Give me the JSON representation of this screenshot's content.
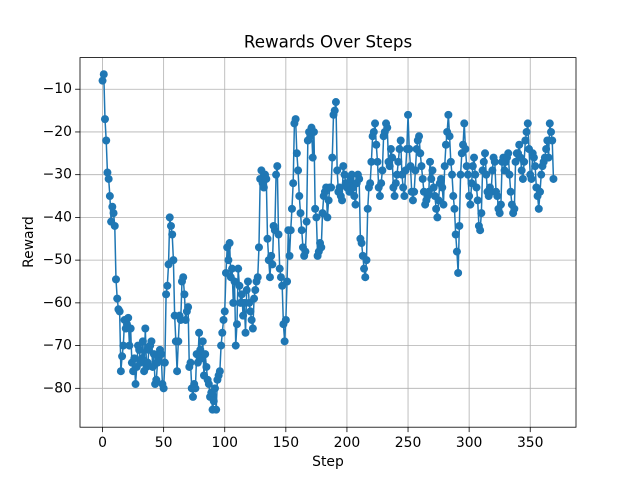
{
  "chart_data": {
    "type": "line",
    "title": "Rewards Over Steps",
    "x_label": "Step",
    "y_label": "Reward",
    "grid": true,
    "xlim": [
      -18.45,
      387.45
    ],
    "ylim": [
      -89.1,
      -2.6
    ],
    "xticks": [
      0,
      50,
      100,
      150,
      200,
      250,
      300,
      350
    ],
    "yticks": [
      {
        "value": -80,
        "label": "−80"
      },
      {
        "value": -70,
        "label": "−70"
      },
      {
        "value": -60,
        "label": "−60"
      },
      {
        "value": -50,
        "label": "−50"
      },
      {
        "value": -40,
        "label": "−40"
      },
      {
        "value": -30,
        "label": "−30"
      },
      {
        "value": -20,
        "label": "−20"
      },
      {
        "value": -10,
        "label": "−10"
      }
    ],
    "x": [
      0,
      1,
      2,
      3,
      4,
      5,
      6,
      7,
      8,
      9,
      10,
      11,
      12,
      13,
      14,
      15,
      16,
      17,
      18,
      19,
      20,
      21,
      22,
      23,
      24,
      25,
      26,
      27,
      28,
      29,
      30,
      31,
      32,
      33,
      34,
      35,
      36,
      37,
      38,
      39,
      40,
      41,
      42,
      43,
      44,
      45,
      46,
      47,
      48,
      49,
      50,
      51,
      52,
      53,
      54,
      55,
      56,
      57,
      58,
      59,
      60,
      61,
      62,
      63,
      64,
      65,
      66,
      67,
      68,
      69,
      70,
      71,
      72,
      73,
      74,
      75,
      76,
      77,
      78,
      79,
      80,
      81,
      82,
      83,
      84,
      85,
      86,
      87,
      88,
      89,
      90,
      91,
      92,
      93,
      94,
      95,
      96,
      97,
      98,
      99,
      100,
      101,
      102,
      103,
      104,
      105,
      106,
      107,
      108,
      109,
      110,
      111,
      112,
      113,
      114,
      115,
      116,
      117,
      118,
      119,
      120,
      121,
      122,
      123,
      124,
      125,
      126,
      127,
      128,
      129,
      130,
      131,
      132,
      133,
      134,
      135,
      136,
      137,
      138,
      139,
      140,
      141,
      142,
      143,
      144,
      145,
      146,
      147,
      148,
      149,
      150,
      151,
      152,
      153,
      154,
      155,
      156,
      157,
      158,
      159,
      160,
      161,
      162,
      163,
      164,
      165,
      166,
      167,
      168,
      169,
      170,
      171,
      172,
      173,
      174,
      175,
      176,
      177,
      178,
      179,
      180,
      181,
      182,
      183,
      184,
      185,
      186,
      187,
      188,
      189,
      190,
      191,
      192,
      193,
      194,
      195,
      196,
      197,
      198,
      199,
      200,
      201,
      202,
      203,
      204,
      205,
      206,
      207,
      208,
      209,
      210,
      211,
      212,
      213,
      214,
      215,
      216,
      217,
      218,
      219,
      220,
      221,
      222,
      223,
      224,
      225,
      226,
      227,
      228,
      229,
      230,
      231,
      232,
      233,
      234,
      235,
      236,
      237,
      238,
      239,
      240,
      241,
      242,
      243,
      244,
      245,
      246,
      247,
      248,
      249,
      250,
      251,
      252,
      253,
      254,
      255,
      256,
      257,
      258,
      259,
      260,
      261,
      262,
      263,
      264,
      265,
      266,
      267,
      268,
      269,
      270,
      271,
      272,
      273,
      274,
      275,
      276,
      277,
      278,
      279,
      280,
      281,
      282,
      283,
      284,
      285,
      286,
      287,
      288,
      289,
      290,
      291,
      292,
      293,
      294,
      295,
      296,
      297,
      298,
      299,
      300,
      301,
      302,
      303,
      304,
      305,
      306,
      307,
      308,
      309,
      310,
      311,
      312,
      313,
      314,
      315,
      316,
      317,
      318,
      319,
      320,
      321,
      322,
      323,
      324,
      325,
      326,
      327,
      328,
      329,
      330,
      331,
      332,
      333,
      334,
      335,
      336,
      337,
      338,
      339,
      340,
      341,
      342,
      343,
      344,
      345,
      346,
      347,
      348,
      349,
      350,
      351,
      352,
      353,
      354,
      355,
      356,
      357,
      358,
      359,
      360,
      361,
      362,
      363,
      364,
      365,
      366,
      367,
      368,
      369
    ],
    "series": [
      {
        "name": "Reward",
        "color": "#1f77b4",
        "values": [
          -8,
          -6.5,
          -17,
          -22,
          -29.5,
          -31,
          -35,
          -41,
          -37.5,
          -39,
          -42,
          -54.5,
          -59,
          -61.5,
          -62,
          -76,
          -72.5,
          -70,
          -64,
          -66,
          -65,
          -63.5,
          -70,
          -66,
          -74,
          -76,
          -73,
          -79,
          -75,
          -70,
          -71,
          -74,
          -73,
          -69,
          -76,
          -66,
          -75,
          -74,
          -71,
          -70,
          -69,
          -75,
          -72,
          -79,
          -78,
          -74,
          -73,
          -71,
          -72,
          -79,
          -80,
          -74,
          -58,
          -56,
          -51,
          -40,
          -42,
          -44,
          -50,
          -63,
          -69,
          -76,
          -69,
          -63,
          -64,
          -55,
          -54,
          -58,
          -64,
          -62,
          -61,
          -75,
          -74,
          -80,
          -82,
          -79,
          -80,
          -72,
          -74,
          -67,
          -71,
          -73,
          -69,
          -77,
          -72,
          -75,
          -78,
          -79,
          -82,
          -81,
          -85,
          -83,
          -80,
          -85,
          -78,
          -77,
          -76,
          -70,
          -67,
          -64,
          -62,
          -53,
          -47,
          -50,
          -46,
          -54,
          -52,
          -60,
          -55,
          -70,
          -65,
          -52,
          -56,
          -60,
          -58,
          -63,
          -60,
          -67,
          -57,
          -55,
          -60,
          -62,
          -64,
          -66,
          -59,
          -57,
          -55,
          -54,
          -47,
          -31,
          -29,
          -32,
          -33,
          -30,
          -31,
          -45,
          -50,
          -54,
          -49,
          -51,
          -42,
          -43,
          -30,
          -28,
          -44,
          -52,
          -54,
          -56,
          -65,
          -69,
          -64,
          -55,
          -43,
          -49,
          -43,
          -38,
          -32,
          -18,
          -17,
          -25,
          -29,
          -35,
          -39,
          -43,
          -47,
          -49,
          -48,
          -41,
          -22,
          -20,
          -21,
          -19,
          -26,
          -20,
          -38,
          -40,
          -49,
          -48,
          -46,
          -47,
          -39,
          -35,
          -34,
          -33,
          -40,
          -36,
          -33,
          -33,
          -26,
          -16,
          -15,
          -13,
          -29,
          -34,
          -33,
          -35,
          -36,
          -28,
          -30,
          -32,
          -33,
          -32,
          -34,
          -31,
          -30,
          -33,
          -35,
          -37,
          -32,
          -30,
          -31,
          -45,
          -46,
          -49,
          -52,
          -54,
          -50,
          -38,
          -33,
          -32,
          -27,
          -21,
          -20,
          -18,
          -23,
          -27,
          -33,
          -35,
          -32,
          -29,
          -21,
          -20,
          -18,
          -19,
          -27,
          -28,
          -24,
          -26,
          -33,
          -35,
          -32,
          -30,
          -27,
          -24,
          -22,
          -30,
          -33,
          -35,
          -29,
          -24,
          -16,
          -24,
          -28,
          -34,
          -36,
          -34,
          -29,
          -24,
          -22,
          -21,
          -25,
          -28,
          -31,
          -34,
          -37,
          -36,
          -35,
          -34,
          -27,
          -31,
          -29,
          -33,
          -35,
          -38,
          -40,
          -36,
          -32,
          -31,
          -33,
          -37,
          -28,
          -23,
          -20,
          -16,
          -21,
          -27,
          -30,
          -35,
          -38,
          -44,
          -48,
          -53,
          -42,
          -30,
          -25,
          -23,
          -18,
          -24,
          -28,
          -30,
          -35,
          -37,
          -32,
          -28,
          -26,
          -30,
          -33,
          -36,
          -42,
          -43,
          -39,
          -29,
          -27,
          -25,
          -30,
          -34,
          -35,
          -33,
          -34,
          -29,
          -26,
          -27,
          -34,
          -35,
          -38,
          -39,
          -37,
          -27,
          -26,
          -29,
          -27,
          -26,
          -25,
          -30,
          -34,
          -37,
          -39,
          -38,
          -27,
          -25,
          -25,
          -23,
          -26,
          -29,
          -31,
          -27,
          -22,
          -20,
          -18,
          -24,
          -30,
          -31,
          -25,
          -26,
          -28,
          -33,
          -35,
          -38,
          -34,
          -30,
          -28,
          -27,
          -26,
          -24,
          -22,
          -26,
          -18,
          -20,
          -22,
          -31
        ]
      }
    ]
  }
}
